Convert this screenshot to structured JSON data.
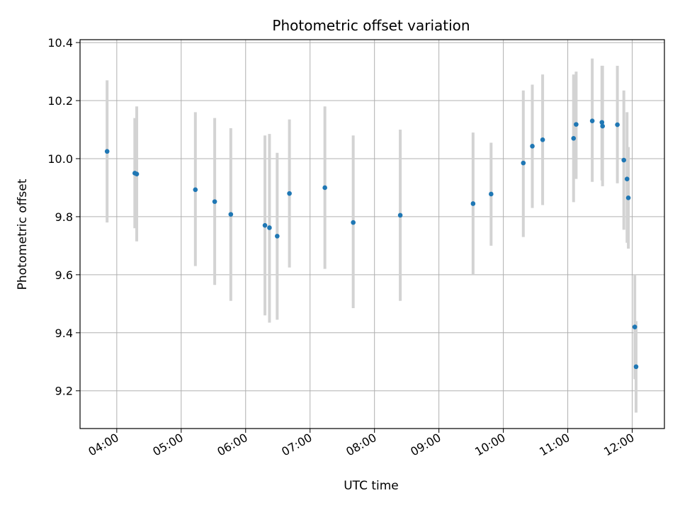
{
  "chart_data": {
    "type": "scatter",
    "title": "Photometric offset variation",
    "xlabel": "UTC time",
    "ylabel": "Photometric offset",
    "grid": true,
    "legend": "none",
    "x_unit": "hours UTC",
    "xlim": [
      3.43,
      12.5
    ],
    "ylim": [
      9.07,
      10.41
    ],
    "x_ticks": [
      {
        "value": 4,
        "label": "04:00"
      },
      {
        "value": 5,
        "label": "05:00"
      },
      {
        "value": 6,
        "label": "06:00"
      },
      {
        "value": 7,
        "label": "07:00"
      },
      {
        "value": 8,
        "label": "08:00"
      },
      {
        "value": 9,
        "label": "09:00"
      },
      {
        "value": 10,
        "label": "10:00"
      },
      {
        "value": 11,
        "label": "11:00"
      },
      {
        "value": 12,
        "label": "12:00"
      }
    ],
    "y_ticks": [
      {
        "value": 9.2,
        "label": "9.2"
      },
      {
        "value": 9.4,
        "label": "9.4"
      },
      {
        "value": 9.6,
        "label": "9.6"
      },
      {
        "value": 9.8,
        "label": "9.8"
      },
      {
        "value": 10.0,
        "label": "10.0"
      },
      {
        "value": 10.2,
        "label": "10.2"
      },
      {
        "value": 10.4,
        "label": "10.4"
      }
    ],
    "colors": {
      "point": "#1f77b4",
      "error_bar": "#d3d3d3",
      "grid": "#b0b0b0",
      "frame": "#000000"
    },
    "series": [
      {
        "points": [
          {
            "x": 3.85,
            "y": 10.025,
            "lo": 9.78,
            "hi": 10.27
          },
          {
            "x": 4.28,
            "y": 9.95,
            "lo": 9.76,
            "hi": 10.14
          },
          {
            "x": 4.31,
            "y": 9.947,
            "lo": 9.715,
            "hi": 10.18
          },
          {
            "x": 5.22,
            "y": 9.893,
            "lo": 9.63,
            "hi": 10.16
          },
          {
            "x": 5.52,
            "y": 9.852,
            "lo": 9.565,
            "hi": 10.14
          },
          {
            "x": 5.77,
            "y": 9.808,
            "lo": 9.51,
            "hi": 10.105
          },
          {
            "x": 6.3,
            "y": 9.77,
            "lo": 9.46,
            "hi": 10.08
          },
          {
            "x": 6.37,
            "y": 9.762,
            "lo": 9.435,
            "hi": 10.085
          },
          {
            "x": 6.49,
            "y": 9.733,
            "lo": 9.445,
            "hi": 10.02
          },
          {
            "x": 6.68,
            "y": 9.88,
            "lo": 9.625,
            "hi": 10.135
          },
          {
            "x": 7.23,
            "y": 9.9,
            "lo": 9.62,
            "hi": 10.18
          },
          {
            "x": 7.67,
            "y": 9.78,
            "lo": 9.485,
            "hi": 10.08
          },
          {
            "x": 8.4,
            "y": 9.805,
            "lo": 9.51,
            "hi": 10.1
          },
          {
            "x": 9.53,
            "y": 9.845,
            "lo": 9.6,
            "hi": 10.09
          },
          {
            "x": 9.81,
            "y": 9.878,
            "lo": 9.7,
            "hi": 10.055
          },
          {
            "x": 10.31,
            "y": 9.985,
            "lo": 9.73,
            "hi": 10.235
          },
          {
            "x": 10.45,
            "y": 10.043,
            "lo": 9.83,
            "hi": 10.255
          },
          {
            "x": 10.61,
            "y": 10.065,
            "lo": 9.84,
            "hi": 10.29
          },
          {
            "x": 11.09,
            "y": 10.07,
            "lo": 9.85,
            "hi": 10.29
          },
          {
            "x": 11.13,
            "y": 10.118,
            "lo": 9.93,
            "hi": 10.3
          },
          {
            "x": 11.38,
            "y": 10.13,
            "lo": 9.92,
            "hi": 10.345
          },
          {
            "x": 11.53,
            "y": 10.125,
            "lo": 9.925,
            "hi": 10.32
          },
          {
            "x": 11.54,
            "y": 10.112,
            "lo": 9.905,
            "hi": 10.32
          },
          {
            "x": 11.77,
            "y": 10.117,
            "lo": 9.915,
            "hi": 10.32
          },
          {
            "x": 11.87,
            "y": 9.995,
            "lo": 9.755,
            "hi": 10.235
          },
          {
            "x": 11.92,
            "y": 9.93,
            "lo": 9.71,
            "hi": 10.16
          },
          {
            "x": 11.94,
            "y": 9.865,
            "lo": 9.69,
            "hi": 10.04
          },
          {
            "x": 12.04,
            "y": 9.42,
            "lo": 9.24,
            "hi": 9.6
          },
          {
            "x": 12.06,
            "y": 9.283,
            "lo": 9.125,
            "hi": 9.44
          }
        ]
      }
    ]
  }
}
